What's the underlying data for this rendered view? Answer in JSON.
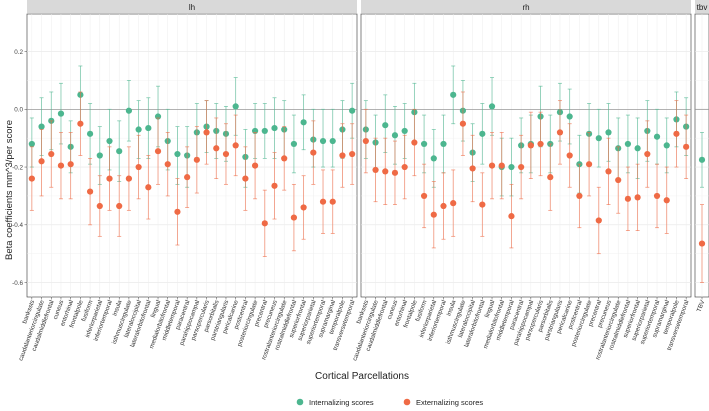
{
  "chart_data": {
    "type": "scatter",
    "subtype": "point-range (estimate with error bars), faceted",
    "ylabel": "Beta coefficients mm^3/per score",
    "xlabel": "Cortical Parcellations",
    "ylim": [
      -0.65,
      0.33
    ],
    "yticks": [
      -0.6,
      -0.4,
      -0.2,
      0.0,
      0.2
    ],
    "ytick_labels": [
      "-0.6",
      "-0.4",
      "-0.2",
      "0.0",
      "0.2"
    ],
    "reference_line": 0,
    "grid": true,
    "legend_position": "bottom",
    "series": [
      {
        "key": "int",
        "name": "Internalizing scores",
        "color": "#4cb68f"
      },
      {
        "key": "ext",
        "name": "Externalizing scores",
        "color": "#ef6a45"
      }
    ],
    "facets": [
      {
        "name": "lh",
        "categories": [
          "bankssts",
          "caudalanteriorcingulate",
          "caudalmiddlefrontal",
          "cuneus",
          "entorhinal",
          "frontalpole",
          "fusiform",
          "inferiorparietal",
          "inferiortemporal",
          "insula",
          "isthmuscingulate",
          "lateraloccipital",
          "lateralorbitofrontal",
          "lingual",
          "medialorbitofrontal",
          "middletemporal",
          "paracentral",
          "parahippocampal",
          "parsopercularis",
          "parsorbitalis",
          "parstriangularis",
          "pericalcarine",
          "postcentral",
          "posteriorcingulate",
          "precentral",
          "precuneus",
          "rostralanteriorcingulate",
          "rostralmiddlefrontal",
          "superiorfrontal",
          "superiorparietal",
          "superiortemporal",
          "supramarginal",
          "temporalpole",
          "transversetemporal"
        ],
        "int": {
          "values": [
            -0.12,
            -0.06,
            -0.04,
            -0.015,
            -0.13,
            0.05,
            -0.085,
            -0.16,
            -0.11,
            -0.145,
            -0.005,
            -0.07,
            -0.065,
            -0.025,
            -0.11,
            -0.155,
            -0.16,
            -0.08,
            -0.06,
            -0.075,
            -0.085,
            0.01,
            -0.165,
            -0.075,
            -0.075,
            -0.065,
            -0.07,
            -0.12,
            -0.045,
            -0.105,
            -0.11,
            -0.11,
            -0.07,
            -0.005
          ],
          "lower": [
            -0.2,
            -0.16,
            -0.14,
            -0.12,
            -0.22,
            -0.05,
            -0.19,
            -0.26,
            -0.21,
            -0.25,
            -0.11,
            -0.17,
            -0.17,
            -0.13,
            -0.21,
            -0.26,
            -0.27,
            -0.18,
            -0.15,
            -0.17,
            -0.18,
            -0.09,
            -0.27,
            -0.17,
            -0.17,
            -0.17,
            -0.17,
            -0.22,
            -0.14,
            -0.2,
            -0.2,
            -0.2,
            -0.17,
            -0.1
          ],
          "upper": [
            -0.03,
            0.04,
            0.06,
            0.09,
            -0.04,
            0.15,
            0.02,
            -0.06,
            0.0,
            -0.04,
            0.1,
            0.03,
            0.04,
            0.08,
            0.0,
            -0.06,
            -0.06,
            0.02,
            0.03,
            0.02,
            0.01,
            0.11,
            -0.07,
            0.02,
            0.02,
            0.04,
            0.03,
            -0.02,
            0.05,
            0.0,
            0.0,
            0.0,
            0.03,
            0.09
          ]
        },
        "ext": {
          "values": [
            -0.24,
            -0.18,
            -0.155,
            -0.195,
            -0.19,
            -0.05,
            -0.285,
            -0.335,
            -0.24,
            -0.335,
            -0.24,
            -0.2,
            -0.27,
            -0.145,
            -0.19,
            -0.355,
            -0.235,
            -0.175,
            -0.08,
            -0.135,
            -0.155,
            -0.125,
            -0.24,
            -0.195,
            -0.395,
            -0.265,
            -0.17,
            -0.375,
            -0.34,
            -0.15,
            -0.32,
            -0.32,
            -0.16,
            -0.155
          ],
          "lower": [
            -0.35,
            -0.3,
            -0.27,
            -0.31,
            -0.31,
            -0.16,
            -0.4,
            -0.44,
            -0.35,
            -0.44,
            -0.35,
            -0.31,
            -0.38,
            -0.26,
            -0.3,
            -0.47,
            -0.34,
            -0.29,
            -0.19,
            -0.24,
            -0.26,
            -0.23,
            -0.35,
            -0.31,
            -0.51,
            -0.38,
            -0.28,
            -0.49,
            -0.45,
            -0.26,
            -0.43,
            -0.43,
            -0.27,
            -0.26
          ],
          "upper": [
            -0.13,
            -0.07,
            -0.04,
            -0.08,
            -0.08,
            0.06,
            -0.17,
            -0.23,
            -0.13,
            -0.23,
            -0.13,
            -0.09,
            -0.16,
            -0.03,
            -0.08,
            -0.24,
            -0.13,
            -0.06,
            0.03,
            -0.03,
            -0.05,
            -0.02,
            -0.13,
            -0.08,
            -0.28,
            -0.15,
            -0.06,
            -0.26,
            -0.23,
            -0.04,
            -0.21,
            -0.21,
            -0.05,
            -0.05
          ]
        }
      },
      {
        "name": "rh",
        "categories": [
          "bankssts",
          "caudalanteriorcingulate",
          "caudalmiddlefrontal",
          "cuneus",
          "entorhinal",
          "frontalpole",
          "fusiform",
          "inferiorparietal",
          "inferiortemporal",
          "insula",
          "isthmuscingulate",
          "lateraloccipital",
          "lateralorbitofrontal",
          "lingual",
          "medialorbitofrontal",
          "middletemporal",
          "paracentral",
          "parahippocampal",
          "parsopercularis",
          "parsorbitalis",
          "parstriangularis",
          "pericalcarine",
          "postcentral",
          "posteriorcingulate",
          "precentral",
          "precuneus",
          "rostralanteriorcingulate",
          "rostralmiddlefrontal",
          "superiorfrontal",
          "superiorparietal",
          "superiortemporal",
          "supramarginal",
          "temporalpole",
          "transversetemporal"
        ],
        "int": {
          "values": [
            -0.07,
            -0.115,
            -0.055,
            -0.09,
            -0.075,
            -0.01,
            -0.12,
            -0.17,
            -0.12,
            0.05,
            -0.005,
            -0.15,
            -0.085,
            0.01,
            -0.2,
            -0.2,
            -0.125,
            -0.12,
            -0.025,
            -0.12,
            -0.01,
            -0.025,
            -0.19,
            -0.085,
            -0.1,
            -0.08,
            -0.135,
            -0.12,
            -0.135,
            -0.075,
            -0.095,
            -0.125,
            -0.035,
            -0.06
          ],
          "lower": [
            -0.17,
            -0.21,
            -0.15,
            -0.19,
            -0.17,
            -0.11,
            -0.22,
            -0.27,
            -0.22,
            -0.05,
            -0.11,
            -0.25,
            -0.19,
            -0.09,
            -0.3,
            -0.3,
            -0.22,
            -0.22,
            -0.13,
            -0.22,
            -0.11,
            -0.12,
            -0.29,
            -0.19,
            -0.2,
            -0.18,
            -0.24,
            -0.22,
            -0.24,
            -0.18,
            -0.19,
            -0.22,
            -0.13,
            -0.16
          ],
          "upper": [
            0.03,
            -0.02,
            0.05,
            0.01,
            0.02,
            0.09,
            -0.02,
            -0.07,
            -0.02,
            0.15,
            0.1,
            -0.05,
            0.02,
            0.11,
            -0.1,
            -0.1,
            -0.03,
            -0.02,
            0.08,
            -0.02,
            0.09,
            0.07,
            -0.09,
            0.02,
            0.0,
            0.02,
            -0.03,
            -0.02,
            -0.03,
            0.03,
            0.0,
            -0.03,
            0.06,
            0.04
          ]
        },
        "ext": {
          "values": [
            -0.11,
            -0.21,
            -0.215,
            -0.22,
            -0.2,
            -0.115,
            -0.3,
            -0.365,
            -0.335,
            -0.325,
            -0.05,
            -0.205,
            -0.33,
            -0.195,
            -0.195,
            -0.37,
            -0.2,
            -0.125,
            -0.12,
            -0.235,
            -0.08,
            -0.16,
            -0.3,
            -0.19,
            -0.385,
            -0.215,
            -0.245,
            -0.31,
            -0.305,
            -0.155,
            -0.3,
            -0.315,
            -0.085,
            -0.13
          ],
          "lower": [
            -0.22,
            -0.32,
            -0.33,
            -0.33,
            -0.31,
            -0.23,
            -0.41,
            -0.48,
            -0.45,
            -0.44,
            -0.16,
            -0.32,
            -0.44,
            -0.31,
            -0.31,
            -0.48,
            -0.31,
            -0.24,
            -0.23,
            -0.35,
            -0.19,
            -0.27,
            -0.41,
            -0.3,
            -0.5,
            -0.33,
            -0.36,
            -0.42,
            -0.42,
            -0.27,
            -0.41,
            -0.43,
            -0.2,
            -0.24
          ],
          "upper": [
            0.0,
            -0.1,
            -0.1,
            -0.11,
            -0.09,
            0.0,
            -0.19,
            -0.25,
            -0.22,
            -0.21,
            0.06,
            -0.09,
            -0.22,
            -0.08,
            -0.08,
            -0.26,
            -0.09,
            -0.01,
            -0.01,
            -0.12,
            0.03,
            -0.05,
            -0.19,
            -0.08,
            -0.27,
            -0.1,
            -0.13,
            -0.2,
            -0.19,
            -0.04,
            -0.19,
            -0.2,
            0.03,
            -0.02
          ]
        }
      },
      {
        "name": "tbv",
        "categories": [
          "TBV"
        ],
        "int": {
          "values": [
            -0.175
          ],
          "lower": [
            -0.27
          ],
          "upper": [
            -0.08
          ]
        },
        "ext": {
          "values": [
            -0.465
          ],
          "lower": [
            -0.6
          ],
          "upper": [
            -0.33
          ]
        }
      }
    ]
  }
}
